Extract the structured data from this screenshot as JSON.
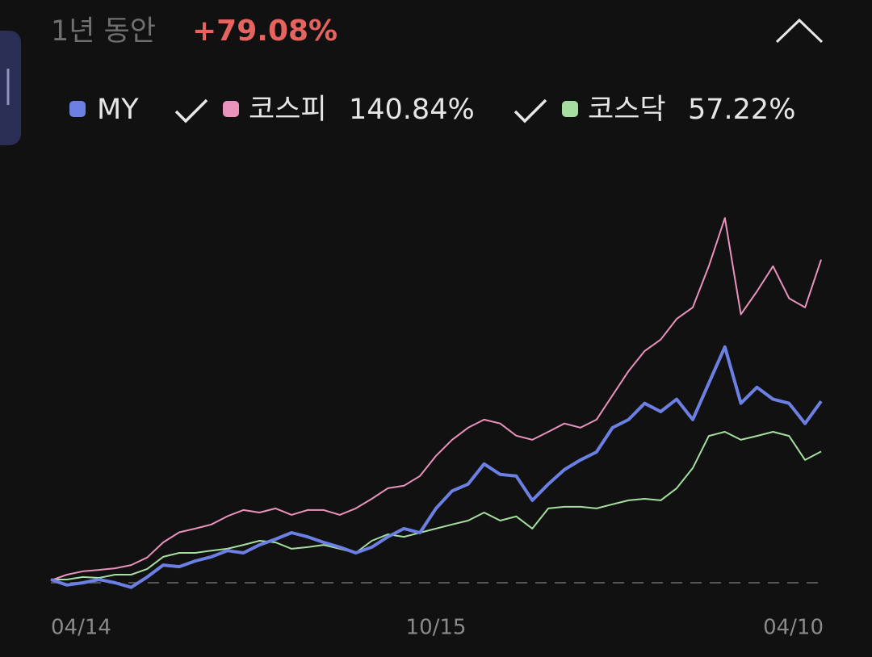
{
  "chart_data": {
    "type": "line",
    "period_label": "1년 동안",
    "return_label": "+79.08%",
    "categories": [
      "04/14",
      null,
      null,
      null,
      null,
      null,
      null,
      null,
      null,
      null,
      null,
      null,
      null,
      null,
      null,
      null,
      null,
      null,
      null,
      null,
      null,
      null,
      null,
      null,
      "10/15",
      null,
      null,
      null,
      null,
      null,
      null,
      null,
      null,
      null,
      null,
      null,
      null,
      null,
      null,
      null,
      null,
      null,
      null,
      null,
      null,
      null,
      null,
      null,
      "04/10"
    ],
    "ylim": [
      -10,
      180
    ],
    "series": [
      {
        "name": "MY",
        "color": "#6b80e2",
        "values": [
          1.4,
          -1,
          0,
          1.4,
          0,
          -2,
          2.5,
          7.7,
          7,
          9.5,
          11.3,
          14,
          13,
          16.5,
          19,
          21.8,
          20,
          17.6,
          15.5,
          13,
          15.5,
          20,
          23.6,
          21.8,
          32.4,
          40,
          43,
          51.8,
          47.2,
          46.5,
          35.9,
          43,
          49.3,
          53.5,
          57,
          67.6,
          71.1,
          78.2,
          74.6,
          80,
          71.1,
          87,
          102.8,
          78.2,
          85.2,
          80,
          78.2,
          69.4,
          79.08
        ]
      },
      {
        "name": "코스피",
        "legend_label": "140.84%",
        "color": "#e992bb",
        "values": [
          1,
          3.5,
          5,
          5.6,
          6.3,
          7.7,
          11,
          17.6,
          22,
          23.6,
          25.4,
          29,
          31.7,
          30.6,
          32.4,
          29.6,
          31.7,
          31.7,
          29.6,
          32.4,
          36.6,
          41.2,
          42.3,
          46.5,
          55.3,
          62.3,
          67.6,
          71.1,
          69.4,
          64.1,
          62.3,
          65.8,
          69.4,
          67.6,
          71.1,
          81.7,
          92.3,
          101,
          106,
          115,
          120,
          138,
          159,
          117,
          127,
          138,
          124,
          120,
          140.84
        ]
      },
      {
        "name": "코스닥",
        "legend_label": "57.22%",
        "color": "#a6dea0",
        "values": [
          1.4,
          1.4,
          2.5,
          2.1,
          3.5,
          3.5,
          6,
          11.3,
          13,
          13,
          14,
          14.8,
          16.5,
          18.3,
          17.6,
          14.8,
          15.5,
          16.5,
          14.8,
          13,
          18.3,
          21.1,
          20,
          21.8,
          23.6,
          25.4,
          27.1,
          30.6,
          27.1,
          28.9,
          23.6,
          32.4,
          33.1,
          33.1,
          32.4,
          34.2,
          35.9,
          36.6,
          35.9,
          41.2,
          50,
          64,
          65.8,
          62.3,
          64,
          65.8,
          64,
          53.5,
          57.22
        ]
      }
    ]
  }
}
